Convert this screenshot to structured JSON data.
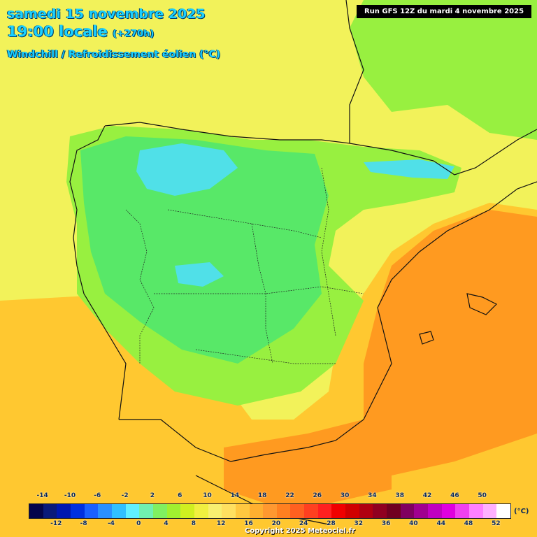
{
  "header": {
    "date": "samedi 15 novembre 2025",
    "time": "19:00 locale",
    "lead": "(+270h)",
    "parameter": "Windchill / Refroidissement éolien (°C)"
  },
  "run_info": "Run GFS 12Z du mardi 4 novembre 2025",
  "copyright": "Copyright 2025 Meteociel.fr",
  "legend": {
    "unit": "(°C)",
    "upper_ticks": [
      "-14",
      "-10",
      "-6",
      "-2",
      "2",
      "6",
      "10",
      "14",
      "18",
      "22",
      "26",
      "30",
      "34",
      "38",
      "42",
      "46",
      "50"
    ],
    "lower_ticks": [
      "-12",
      "-8",
      "-4",
      "0",
      "4",
      "8",
      "12",
      "16",
      "20",
      "24",
      "28",
      "32",
      "36",
      "40",
      "44",
      "48",
      "52"
    ],
    "colors": [
      "#05054b",
      "#0a1a7a",
      "#0018b0",
      "#0030e0",
      "#1a60ff",
      "#2a90ff",
      "#30c0ff",
      "#60f0ff",
      "#70f0b0",
      "#80f060",
      "#a0f030",
      "#d0f020",
      "#f0f040",
      "#f8f070",
      "#ffe060",
      "#ffc840",
      "#ffb030",
      "#ff9830",
      "#ff8020",
      "#ff6020",
      "#ff4020",
      "#ff2020",
      "#f00000",
      "#d00000",
      "#b00010",
      "#900020",
      "#700020",
      "#800060",
      "#a00090",
      "#c000c0",
      "#e000e0",
      "#f040f0",
      "#ff80ff",
      "#ffb0ff",
      "#ffffff"
    ]
  },
  "map": {
    "field_colors": {
      "cold_core": "#50e0e8",
      "cool": "#58e868",
      "mild_green": "#98f040",
      "mild_yellow": "#f0f050",
      "warm": "#ffc830",
      "hot": "#ff9a20",
      "sea": "#f2f25a"
    }
  }
}
